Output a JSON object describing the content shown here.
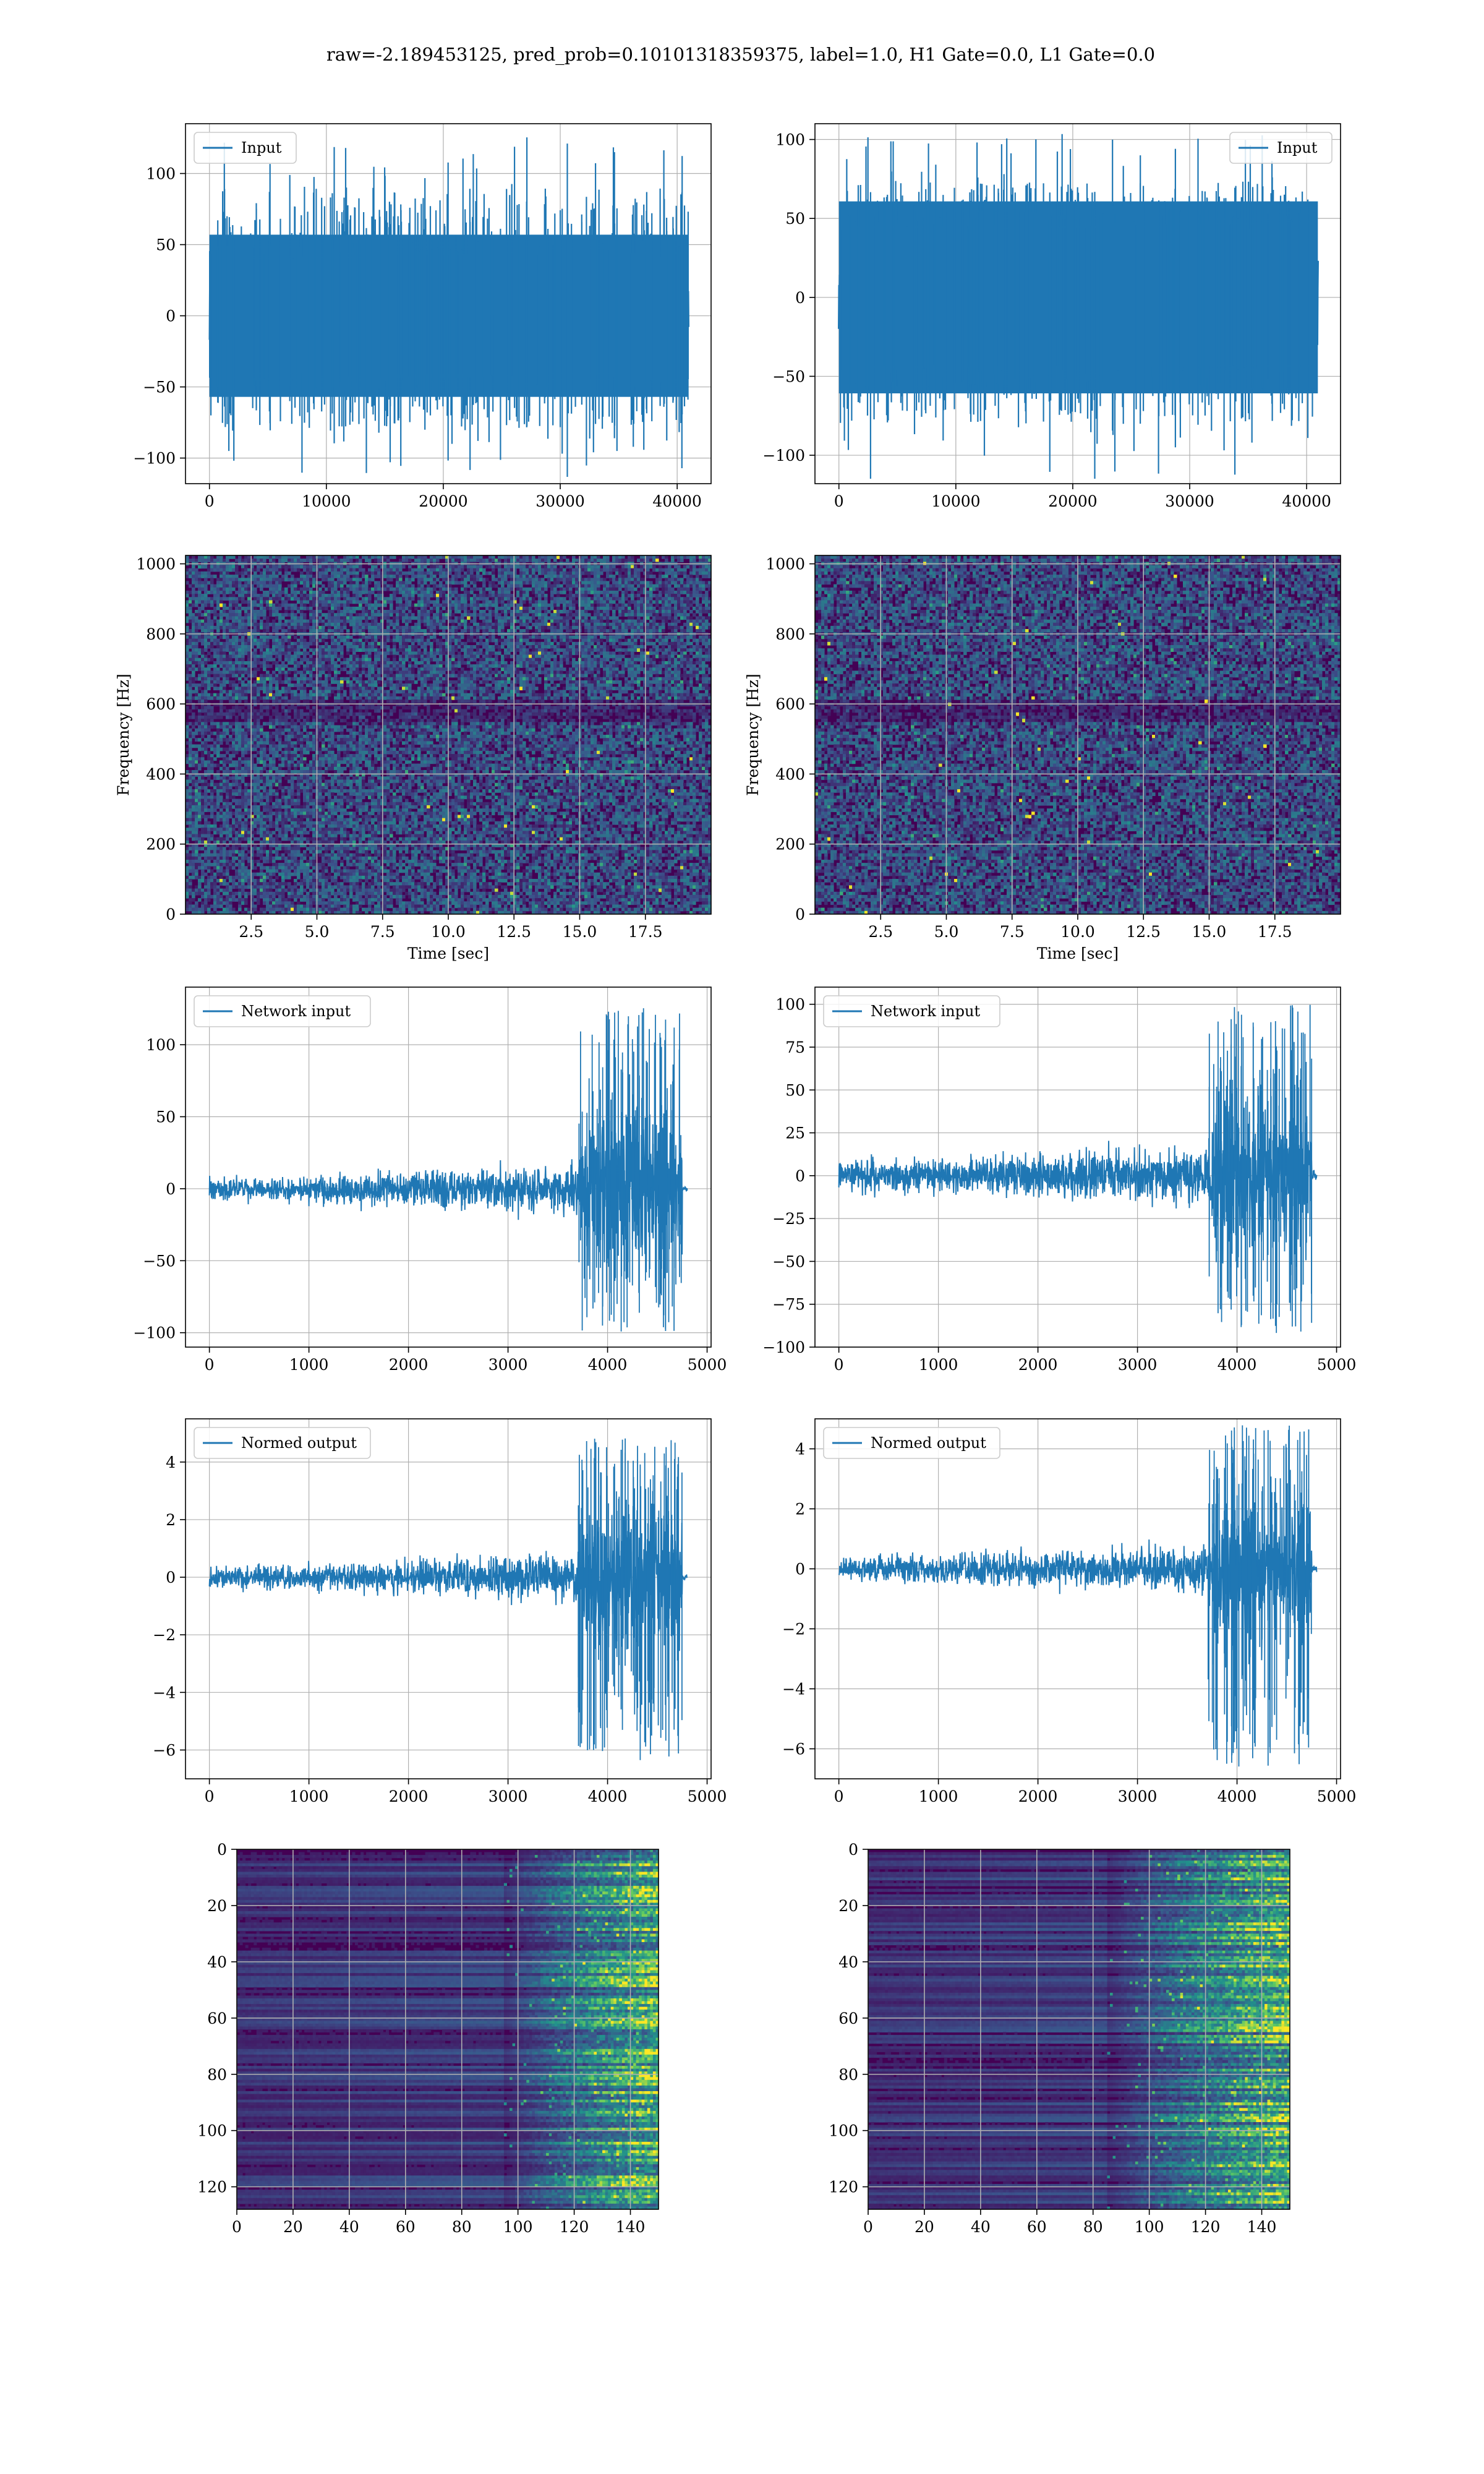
{
  "suptitle": "raw=-2.189453125, pred_prob=0.10101318359375, label=1.0, H1 Gate=0.0, L1 Gate=0.0",
  "colors": {
    "line": "#1f77b4",
    "grid": "#b0b0b0",
    "viridis_dark": "#440154",
    "viridis_mid": "#3b528b",
    "viridis_teal": "#21918c",
    "viridis_green": "#5ec962",
    "viridis_yellow": "#fde725"
  },
  "chart_data": [
    {
      "id": "input-h1",
      "type": "line",
      "series": [
        {
          "name": "Input"
        }
      ],
      "legend": "upper left",
      "xlim": [
        -2048,
        42900
      ],
      "ylim": [
        -118,
        135
      ],
      "xticks": [
        0,
        10000,
        20000,
        30000,
        40000
      ],
      "xticklabels": [
        "0",
        "10000",
        "20000",
        "30000",
        "40000"
      ],
      "yticks": [
        -100,
        -50,
        0,
        50,
        100
      ],
      "yticklabels": [
        "−100",
        "−50",
        "0",
        "50",
        "100"
      ],
      "signal": {
        "x_start": 0,
        "x_end": 40960,
        "kind": "noise",
        "amplitude": 30,
        "max": 130,
        "min": -116
      },
      "grid": true
    },
    {
      "id": "input-l1",
      "type": "line",
      "series": [
        {
          "name": "Input"
        }
      ],
      "legend": "upper right",
      "xlim": [
        -2048,
        42900
      ],
      "ylim": [
        -118,
        110
      ],
      "xticks": [
        0,
        10000,
        20000,
        30000,
        40000
      ],
      "xticklabels": [
        "0",
        "10000",
        "20000",
        "30000",
        "40000"
      ],
      "yticks": [
        -100,
        -50,
        0,
        50,
        100
      ],
      "yticklabels": [
        "−100",
        "−50",
        "0",
        "50",
        "100"
      ],
      "signal": {
        "x_start": 0,
        "x_end": 40960,
        "kind": "noise",
        "amplitude": 32,
        "max": 104,
        "min": -115
      },
      "grid": true
    },
    {
      "id": "spec-h1",
      "type": "heatmap",
      "xlabel": "Time [sec]",
      "ylabel": "Frequency [Hz]",
      "xlim": [
        0,
        20
      ],
      "ylim": [
        0,
        1024
      ],
      "xticks": [
        2.5,
        5,
        7.5,
        10,
        12.5,
        15,
        17.5
      ],
      "xticklabels": [
        "2.5",
        "5.0",
        "7.5",
        "10.0",
        "12.5",
        "15.0",
        "17.5"
      ],
      "yticks": [
        0,
        200,
        400,
        600,
        800,
        1000
      ],
      "yticklabels": [
        "0",
        "200",
        "400",
        "600",
        "800",
        "1000"
      ],
      "colormap": "viridis",
      "grid": true,
      "seed": 11
    },
    {
      "id": "spec-l1",
      "type": "heatmap",
      "xlabel": "Time [sec]",
      "ylabel": "Frequency [Hz]",
      "xlim": [
        0,
        20
      ],
      "ylim": [
        0,
        1024
      ],
      "xticks": [
        2.5,
        5,
        7.5,
        10,
        12.5,
        15,
        17.5
      ],
      "xticklabels": [
        "2.5",
        "5.0",
        "7.5",
        "10.0",
        "12.5",
        "15.0",
        "17.5"
      ],
      "yticks": [
        0,
        200,
        400,
        600,
        800,
        1000
      ],
      "yticklabels": [
        "0",
        "200",
        "400",
        "600",
        "800",
        "1000"
      ],
      "colormap": "viridis",
      "grid": true,
      "seed": 29
    },
    {
      "id": "network-h1",
      "type": "line",
      "series": [
        {
          "name": "Network input"
        }
      ],
      "legend": "upper left",
      "xlim": [
        -240,
        5040
      ],
      "ylim": [
        -110,
        140
      ],
      "xticks": [
        0,
        1000,
        2000,
        3000,
        4000,
        5000
      ],
      "xticklabels": [
        "0",
        "1000",
        "2000",
        "3000",
        "4000",
        "5000"
      ],
      "yticks": [
        -100,
        -50,
        0,
        50,
        100
      ],
      "yticklabels": [
        "−100",
        "−50",
        "0",
        "50",
        "100"
      ],
      "signal": {
        "x_start": 0,
        "x_end": 4800,
        "kind": "chirp",
        "base": 6,
        "ramp_to": 14,
        "burst_start": 3700,
        "burst_peak": 3850,
        "burst_end": 4750,
        "burst_amp": 50,
        "max": 128,
        "min": -102,
        "tail_end": 4800
      },
      "grid": true
    },
    {
      "id": "network-l1",
      "type": "line",
      "series": [
        {
          "name": "Network input"
        }
      ],
      "legend": "upper left",
      "xlim": [
        -240,
        5040
      ],
      "ylim": [
        -100,
        110
      ],
      "xticks": [
        0,
        1000,
        2000,
        3000,
        4000,
        5000
      ],
      "xticklabels": [
        "0",
        "1000",
        "2000",
        "3000",
        "4000",
        "5000"
      ],
      "yticks": [
        -100,
        -75,
        -50,
        -25,
        0,
        25,
        50,
        75,
        100
      ],
      "yticklabels": [
        "−100",
        "−75",
        "−50",
        "−25",
        "0",
        "25",
        "50",
        "75",
        "100"
      ],
      "signal": {
        "x_start": 0,
        "x_end": 4800,
        "kind": "chirp",
        "base": 8,
        "ramp_to": 14,
        "burst_start": 3700,
        "burst_peak": 3800,
        "burst_end": 4750,
        "burst_amp": 38,
        "max": 100,
        "min": -92,
        "tail_end": 4800
      },
      "grid": true
    },
    {
      "id": "normed-h1",
      "type": "line",
      "series": [
        {
          "name": "Normed output"
        }
      ],
      "legend": "upper left",
      "xlim": [
        -240,
        5040
      ],
      "ylim": [
        -7,
        5.5
      ],
      "xticks": [
        0,
        1000,
        2000,
        3000,
        4000,
        5000
      ],
      "xticklabels": [
        "0",
        "1000",
        "2000",
        "3000",
        "4000",
        "5000"
      ],
      "yticks": [
        -6,
        -4,
        -2,
        0,
        2,
        4
      ],
      "yticklabels": [
        "−6",
        "−4",
        "−2",
        "0",
        "2",
        "4"
      ],
      "signal": {
        "x_start": 0,
        "x_end": 4800,
        "kind": "chirp",
        "base": 0.3,
        "ramp_to": 0.7,
        "burst_start": 3700,
        "burst_peak": 3850,
        "burst_end": 4750,
        "burst_amp": 2.3,
        "max": 4.9,
        "min": -6.4,
        "tail_end": 4800
      },
      "grid": true
    },
    {
      "id": "normed-l1",
      "type": "line",
      "series": [
        {
          "name": "Normed output"
        }
      ],
      "legend": "upper left",
      "xlim": [
        -240,
        5040
      ],
      "ylim": [
        -7,
        5
      ],
      "xticks": [
        0,
        1000,
        2000,
        3000,
        4000,
        5000
      ],
      "xticklabels": [
        "0",
        "1000",
        "2000",
        "3000",
        "4000",
        "5000"
      ],
      "yticks": [
        -6,
        -4,
        -2,
        0,
        2,
        4
      ],
      "yticklabels": [
        "−6",
        "−4",
        "−2",
        "0",
        "2",
        "4"
      ],
      "signal": {
        "x_start": 0,
        "x_end": 4800,
        "kind": "chirp",
        "base": 0.35,
        "ramp_to": 0.65,
        "burst_start": 3700,
        "burst_peak": 3800,
        "burst_end": 4750,
        "burst_amp": 1.9,
        "max": 4.8,
        "min": -6.6,
        "tail_end": 4800
      },
      "grid": true
    },
    {
      "id": "feat-h1",
      "type": "heatmap",
      "xlim": [
        0,
        150
      ],
      "ylim": [
        128,
        0
      ],
      "xticks": [
        0,
        20,
        40,
        60,
        80,
        100,
        120,
        140
      ],
      "xticklabels": [
        "0",
        "20",
        "40",
        "60",
        "80",
        "100",
        "120",
        "140"
      ],
      "yticks": [
        0,
        20,
        40,
        60,
        80,
        100,
        120
      ],
      "yticklabels": [
        "0",
        "20",
        "40",
        "60",
        "80",
        "100",
        "120"
      ],
      "colormap": "viridis",
      "grid": true,
      "seed": 5,
      "activity_start": 95
    },
    {
      "id": "feat-l1",
      "type": "heatmap",
      "xlim": [
        0,
        150
      ],
      "ylim": [
        128,
        0
      ],
      "xticks": [
        0,
        20,
        40,
        60,
        80,
        100,
        120,
        140
      ],
      "xticklabels": [
        "0",
        "20",
        "40",
        "60",
        "80",
        "100",
        "120",
        "140"
      ],
      "yticks": [
        0,
        20,
        40,
        60,
        80,
        100,
        120
      ],
      "yticklabels": [
        "0",
        "20",
        "40",
        "60",
        "80",
        "100",
        "120"
      ],
      "colormap": "viridis",
      "grid": true,
      "seed": 17,
      "activity_start": 85
    }
  ]
}
